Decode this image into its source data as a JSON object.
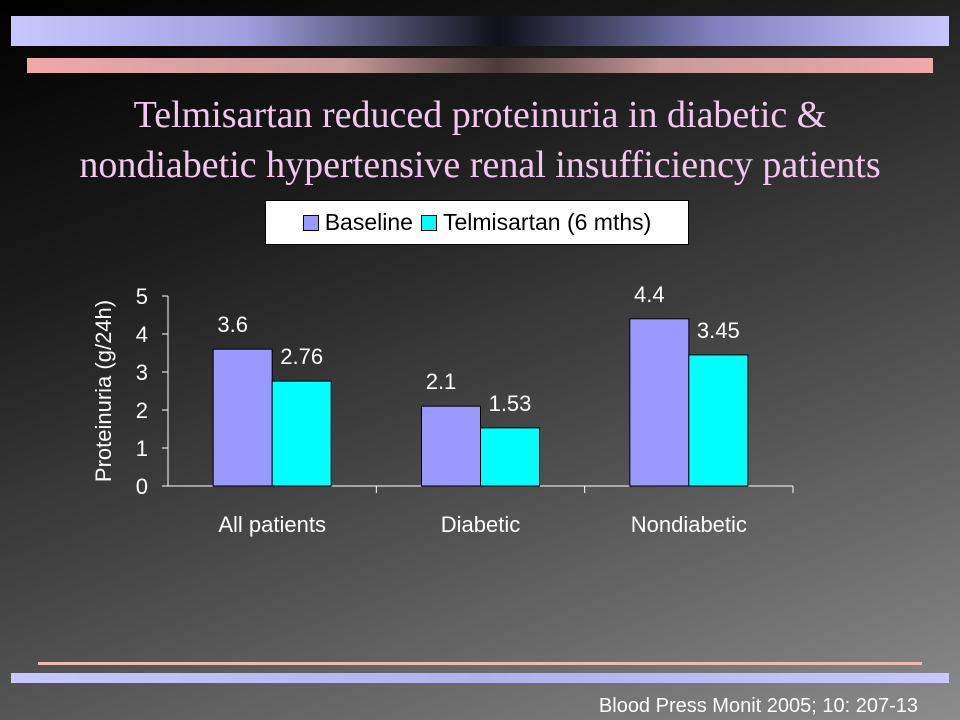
{
  "slide": {
    "title_line1": "Telmisartan reduced proteinuria in diabetic &",
    "title_line2": "nondiabetic hypertensive renal insufficiency patients",
    "citation": "Blood Press Monit 2005; 10: 207-13"
  },
  "colors": {
    "title": "#f2c8ee",
    "baseline": "#9999ff",
    "telmisartan": "#00ffff",
    "footer_line": "#f4b8b4"
  },
  "chart_data": {
    "type": "bar",
    "categories": [
      "All patients",
      "Diabetic",
      "Nondiabetic"
    ],
    "series": [
      {
        "name": "Baseline",
        "values": [
          3.6,
          2.1,
          4.4
        ],
        "labels": [
          "3.6",
          "2.1",
          "4.4"
        ]
      },
      {
        "name": "Telmisartan (6 mths)",
        "values": [
          2.76,
          1.53,
          3.45
        ],
        "labels": [
          "2.76",
          "1.53",
          "3.45"
        ]
      }
    ],
    "ylabel": "Proteinuria (g/24h)",
    "ylim": [
      0,
      5
    ],
    "yticks": [
      "0",
      "1",
      "2",
      "3",
      "4",
      "5"
    ],
    "legend": "top",
    "grid": false
  }
}
